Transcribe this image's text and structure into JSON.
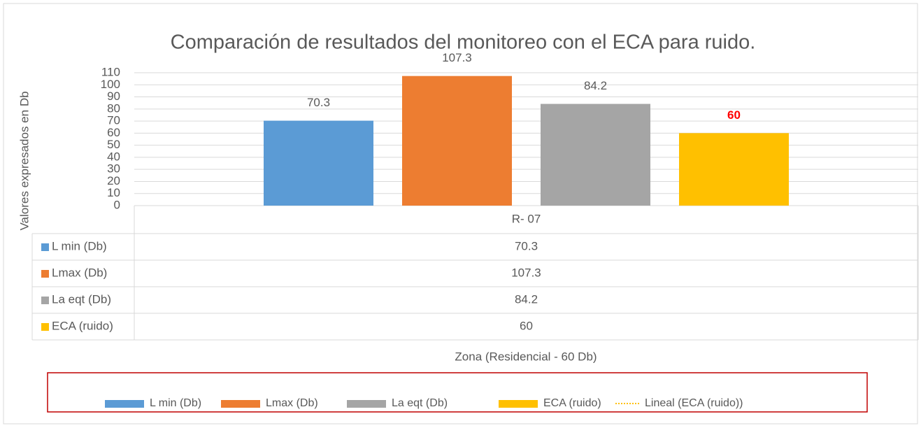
{
  "chart_data": {
    "type": "bar",
    "title": "Comparación de resultados del monitoreo con el ECA para ruido.",
    "y_label": "Valores expresados en Db",
    "x_label": "Zona (Residencial - 60 Db)",
    "categories": [
      "R- 07"
    ],
    "series": [
      {
        "name": "L min (Db)",
        "color": "#5b9bd5",
        "values": [
          70.3
        ]
      },
      {
        "name": "Lmax (Db)",
        "color": "#ed7d31",
        "values": [
          107.3
        ]
      },
      {
        "name": "La eqt (Db)",
        "color": "#a5a5a5",
        "values": [
          84.2
        ]
      },
      {
        "name": "ECA (ruido)",
        "color": "#ffc000",
        "values": [
          60
        ]
      }
    ],
    "trendline": {
      "name": "Lineal (ECA (ruido))",
      "color": "#ffc000"
    },
    "ylim": [
      0,
      110
    ],
    "yticks": [
      0,
      10,
      20,
      30,
      40,
      50,
      60,
      70,
      80,
      90,
      100,
      110
    ],
    "grid": true,
    "data_table": true,
    "legend": "bottom"
  }
}
